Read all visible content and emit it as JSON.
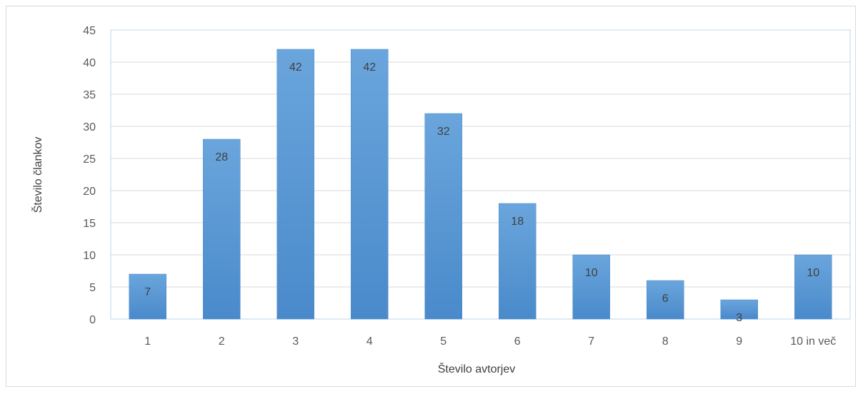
{
  "chart_data": {
    "type": "bar",
    "title": "",
    "xlabel": "Število avtorjev",
    "ylabel": "Število člankov",
    "categories": [
      "1",
      "2",
      "3",
      "4",
      "5",
      "6",
      "7",
      "8",
      "9",
      "10 in več"
    ],
    "values": [
      7,
      28,
      42,
      42,
      32,
      18,
      10,
      6,
      3,
      10
    ],
    "data_labels": [
      "7",
      "28",
      "42",
      "42",
      "32",
      "18",
      "10",
      "6",
      "3",
      "10"
    ],
    "ylim": [
      0,
      45
    ],
    "yticks": [
      "0",
      "5",
      "10",
      "15",
      "20",
      "25",
      "30",
      "35",
      "40",
      "45"
    ],
    "grid": true,
    "legend": "none",
    "colors": {
      "bar": "#5b9bd5",
      "bar_light": "#6aa5dc",
      "bar_dark": "#4f8ec9",
      "grid": "#d9d9d9",
      "plot_border": "#bdd7ee"
    }
  }
}
